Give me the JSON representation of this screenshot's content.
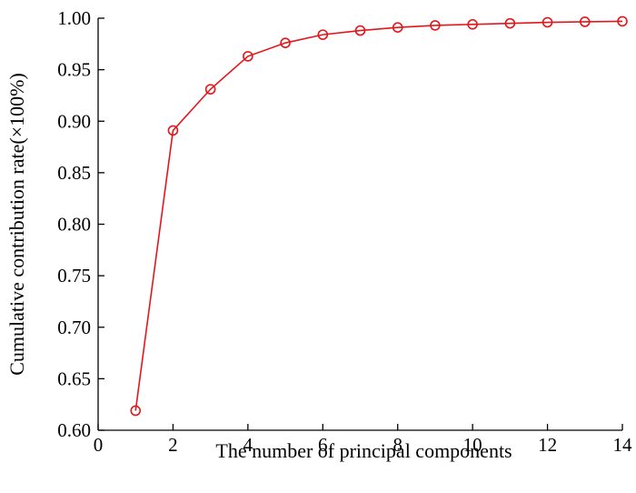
{
  "chart_data": {
    "type": "line",
    "title": "",
    "xlabel": "The number of principal components",
    "ylabel": "Cumulative contribution rate(×100%)",
    "xlim": [
      0,
      14
    ],
    "ylim": [
      0.6,
      1.0
    ],
    "x_ticks": [
      0,
      2,
      4,
      6,
      8,
      10,
      12,
      14
    ],
    "x_tick_labels": [
      "0",
      "2",
      "4",
      "6",
      "8",
      "10",
      "12",
      "14"
    ],
    "y_ticks": [
      0.6,
      0.65,
      0.7,
      0.75,
      0.8,
      0.85,
      0.9,
      0.95,
      1.0
    ],
    "y_tick_labels": [
      "0.60",
      "0.65",
      "0.70",
      "0.75",
      "0.80",
      "0.85",
      "0.90",
      "0.95",
      "1.00"
    ],
    "grid": false,
    "series": [
      {
        "color": "#e3171b",
        "marker": "circle-open",
        "x": [
          1,
          2,
          3,
          4,
          5,
          6,
          7,
          8,
          9,
          10,
          11,
          12,
          13,
          14
        ],
        "y": [
          0.619,
          0.891,
          0.931,
          0.963,
          0.976,
          0.984,
          0.988,
          0.991,
          0.993,
          0.994,
          0.995,
          0.996,
          0.9965,
          0.997
        ]
      }
    ]
  }
}
